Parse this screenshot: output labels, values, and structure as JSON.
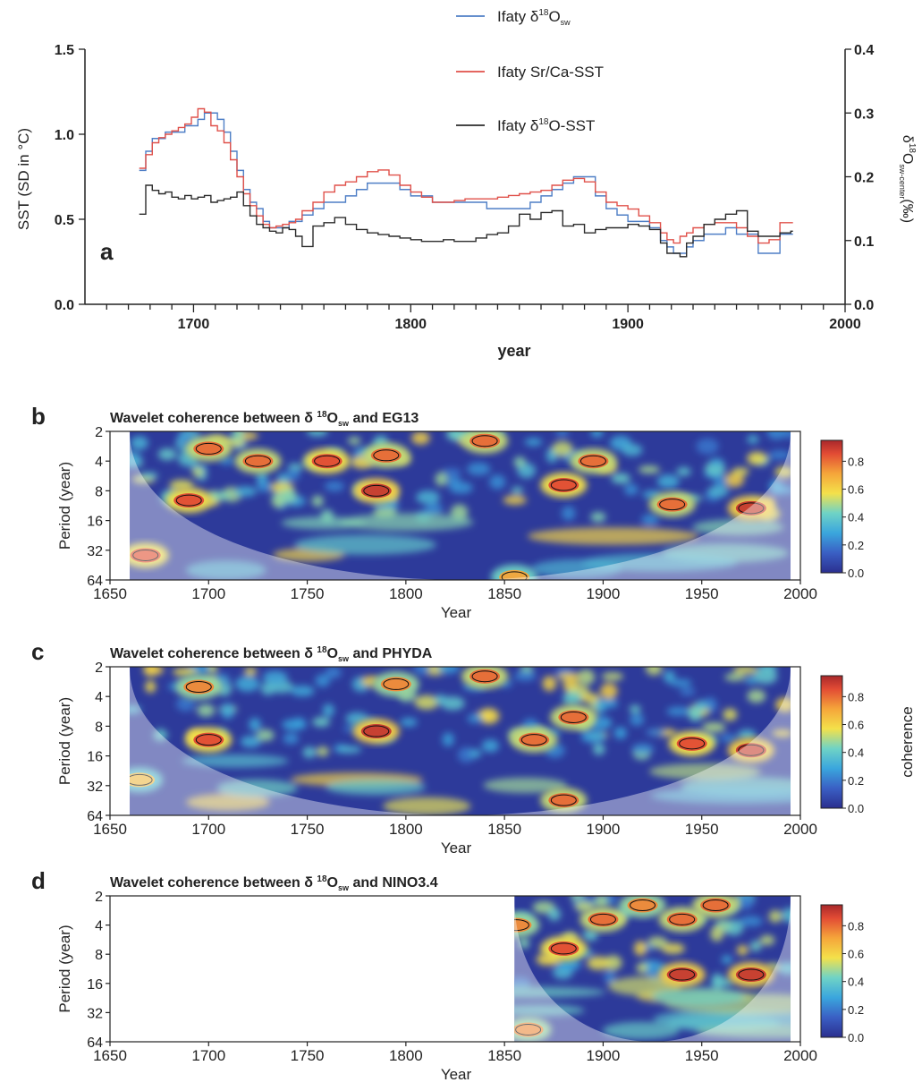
{
  "chart_data": [
    {
      "panel": "a",
      "type": "line",
      "title": "",
      "xlabel": "year",
      "ylabel": "SST (SD in °C)",
      "y2label": {
        "base": "δ",
        "sup": "18",
        "mid": "O",
        "sub": "sw-center",
        "unit": "(‰)"
      },
      "xlim": [
        1650,
        2000
      ],
      "ylim": [
        0,
        1.5
      ],
      "y2lim": [
        0,
        0.4
      ],
      "x_ticks": [
        1700,
        1800,
        1900,
        2000
      ],
      "y_ticks": [
        "0.0",
        "0.5",
        "1.0",
        "1.5"
      ],
      "y2_ticks": [
        "0.0",
        "0.1",
        "0.2",
        "0.3",
        "0.4"
      ],
      "legend_position": "top-center",
      "legend": [
        {
          "base": "Ifaty δ",
          "sup": "18",
          "mid": "O",
          "sub": "sw",
          "color": "#4f7fc6"
        },
        {
          "base": "Ifaty Sr/Ca-SST",
          "sup": "",
          "mid": "",
          "sub": "",
          "color": "#e0514a"
        },
        {
          "base": "Ifaty δ",
          "sup": "18",
          "mid": "O-SST",
          "sub": "",
          "color": "#2b2b2b"
        }
      ],
      "series": [
        {
          "name": "Ifaty δ18Osw",
          "color": "#4f7fc6",
          "axis": "right",
          "x": [
            1675,
            1678,
            1681,
            1684,
            1687,
            1690,
            1693,
            1696,
            1699,
            1702,
            1705,
            1708,
            1711,
            1714,
            1717,
            1720,
            1723,
            1726,
            1729,
            1732,
            1735,
            1738,
            1741,
            1744,
            1747,
            1750,
            1755,
            1760,
            1765,
            1770,
            1775,
            1780,
            1785,
            1790,
            1795,
            1800,
            1805,
            1810,
            1815,
            1820,
            1825,
            1830,
            1835,
            1840,
            1845,
            1850,
            1855,
            1860,
            1865,
            1870,
            1875,
            1880,
            1885,
            1890,
            1895,
            1900,
            1905,
            1910,
            1915,
            1918,
            1921,
            1924,
            1927,
            1930,
            1935,
            1940,
            1945,
            1950,
            1955,
            1960,
            1965,
            1970,
            1975
          ],
          "y": [
            0.21,
            0.24,
            0.26,
            0.26,
            0.27,
            0.27,
            0.27,
            0.28,
            0.28,
            0.29,
            0.3,
            0.3,
            0.29,
            0.27,
            0.24,
            0.21,
            0.18,
            0.16,
            0.15,
            0.13,
            0.12,
            0.12,
            0.12,
            0.13,
            0.13,
            0.14,
            0.15,
            0.16,
            0.16,
            0.17,
            0.18,
            0.19,
            0.19,
            0.19,
            0.18,
            0.17,
            0.17,
            0.16,
            0.16,
            0.16,
            0.16,
            0.16,
            0.15,
            0.15,
            0.15,
            0.15,
            0.16,
            0.17,
            0.18,
            0.19,
            0.2,
            0.2,
            0.17,
            0.15,
            0.14,
            0.13,
            0.13,
            0.12,
            0.1,
            0.09,
            0.08,
            0.08,
            0.09,
            0.1,
            0.11,
            0.11,
            0.12,
            0.11,
            0.11,
            0.08,
            0.08,
            0.11,
            0.11
          ]
        },
        {
          "name": "Ifaty Sr/Ca-SST",
          "color": "#e0514a",
          "axis": "left",
          "x": [
            1675,
            1678,
            1681,
            1684,
            1687,
            1690,
            1693,
            1696,
            1699,
            1702,
            1705,
            1708,
            1711,
            1714,
            1717,
            1720,
            1723,
            1726,
            1729,
            1732,
            1735,
            1738,
            1741,
            1744,
            1747,
            1750,
            1755,
            1760,
            1765,
            1770,
            1775,
            1780,
            1785,
            1790,
            1795,
            1800,
            1805,
            1810,
            1815,
            1820,
            1825,
            1830,
            1835,
            1840,
            1845,
            1850,
            1855,
            1860,
            1865,
            1870,
            1875,
            1880,
            1885,
            1890,
            1895,
            1900,
            1905,
            1910,
            1915,
            1918,
            1921,
            1924,
            1927,
            1930,
            1935,
            1940,
            1945,
            1950,
            1955,
            1960,
            1965,
            1970,
            1975
          ],
          "y": [
            0.8,
            0.88,
            0.95,
            0.98,
            1.0,
            1.02,
            1.04,
            1.06,
            1.1,
            1.15,
            1.13,
            1.05,
            1.02,
            0.95,
            0.85,
            0.75,
            0.65,
            0.58,
            0.52,
            0.47,
            0.45,
            0.46,
            0.47,
            0.48,
            0.5,
            0.55,
            0.6,
            0.66,
            0.7,
            0.72,
            0.75,
            0.78,
            0.79,
            0.76,
            0.7,
            0.66,
            0.63,
            0.6,
            0.6,
            0.61,
            0.62,
            0.62,
            0.62,
            0.63,
            0.64,
            0.65,
            0.66,
            0.67,
            0.7,
            0.73,
            0.74,
            0.72,
            0.66,
            0.6,
            0.58,
            0.56,
            0.52,
            0.48,
            0.42,
            0.38,
            0.36,
            0.4,
            0.42,
            0.45,
            0.47,
            0.48,
            0.48,
            0.45,
            0.4,
            0.36,
            0.38,
            0.48,
            0.48
          ]
        },
        {
          "name": "Ifaty δ18O-SST",
          "color": "#2b2b2b",
          "axis": "left",
          "x": [
            1675,
            1678,
            1681,
            1684,
            1687,
            1690,
            1693,
            1696,
            1699,
            1702,
            1705,
            1708,
            1711,
            1714,
            1717,
            1720,
            1723,
            1726,
            1729,
            1732,
            1735,
            1738,
            1741,
            1744,
            1747,
            1750,
            1755,
            1760,
            1765,
            1770,
            1775,
            1780,
            1785,
            1790,
            1795,
            1800,
            1805,
            1810,
            1815,
            1820,
            1825,
            1830,
            1835,
            1840,
            1845,
            1850,
            1855,
            1860,
            1865,
            1870,
            1875,
            1880,
            1885,
            1890,
            1895,
            1900,
            1905,
            1910,
            1915,
            1918,
            1921,
            1924,
            1927,
            1930,
            1935,
            1940,
            1945,
            1950,
            1955,
            1960,
            1965,
            1970,
            1975
          ],
          "y": [
            0.53,
            0.7,
            0.67,
            0.65,
            0.66,
            0.63,
            0.62,
            0.64,
            0.62,
            0.63,
            0.64,
            0.6,
            0.61,
            0.62,
            0.63,
            0.66,
            0.58,
            0.52,
            0.47,
            0.45,
            0.43,
            0.42,
            0.45,
            0.44,
            0.4,
            0.34,
            0.46,
            0.48,
            0.51,
            0.47,
            0.44,
            0.42,
            0.41,
            0.4,
            0.39,
            0.38,
            0.37,
            0.37,
            0.38,
            0.37,
            0.37,
            0.39,
            0.41,
            0.42,
            0.46,
            0.53,
            0.5,
            0.54,
            0.55,
            0.46,
            0.47,
            0.42,
            0.44,
            0.45,
            0.45,
            0.47,
            0.46,
            0.44,
            0.36,
            0.3,
            0.3,
            0.28,
            0.36,
            0.4,
            0.47,
            0.5,
            0.53,
            0.55,
            0.43,
            0.4,
            0.4,
            0.42,
            0.43
          ]
        }
      ]
    },
    {
      "panel": "b",
      "type": "heatmap",
      "title": {
        "pre": "Wavelet coherence between δ ",
        "sup": "18",
        "mid": "O",
        "sub": "sw",
        "post": " and EG13"
      },
      "xlabel": "Year",
      "ylabel": "Period (year)",
      "xlim": [
        1650,
        2000
      ],
      "data_x_range": [
        1660,
        1995
      ],
      "y_ticks": [
        "2",
        "4",
        "8",
        "16",
        "32",
        "64"
      ],
      "x_ticks": [
        "1650",
        "1700",
        "1750",
        "1800",
        "1850",
        "1900",
        "1950",
        "2000"
      ],
      "colorbar_ticks": [
        "0.8",
        "0.6",
        "0.4",
        "0.2",
        "0.0"
      ],
      "colorbar_label": "",
      "hotspots": [
        {
          "year": 1690,
          "period": 10,
          "value": 0.9
        },
        {
          "year": 1700,
          "period": 3,
          "value": 0.85
        },
        {
          "year": 1725,
          "period": 4,
          "value": 0.85
        },
        {
          "year": 1760,
          "period": 4,
          "value": 0.9
        },
        {
          "year": 1785,
          "period": 8,
          "value": 0.95
        },
        {
          "year": 1790,
          "period": 3.5,
          "value": 0.85
        },
        {
          "year": 1840,
          "period": 2.5,
          "value": 0.85
        },
        {
          "year": 1880,
          "period": 7,
          "value": 0.9
        },
        {
          "year": 1895,
          "period": 4,
          "value": 0.85
        },
        {
          "year": 1935,
          "period": 11,
          "value": 0.85
        },
        {
          "year": 1975,
          "period": 12,
          "value": 0.95
        },
        {
          "year": 1668,
          "period": 36,
          "value": 0.9
        },
        {
          "year": 1855,
          "period": 60,
          "value": 0.75
        }
      ]
    },
    {
      "panel": "c",
      "type": "heatmap",
      "title": {
        "pre": "Wavelet coherence between δ ",
        "sup": "18",
        "mid": "O",
        "sub": "sw",
        "post": " and PHYDA"
      },
      "xlabel": "Year",
      "ylabel": "Period (year)",
      "xlim": [
        1650,
        2000
      ],
      "data_x_range": [
        1660,
        1995
      ],
      "y_ticks": [
        "2",
        "4",
        "8",
        "16",
        "32",
        "64"
      ],
      "x_ticks": [
        "1650",
        "1700",
        "1750",
        "1800",
        "1850",
        "1900",
        "1950",
        "2000"
      ],
      "colorbar_ticks": [
        "0.8",
        "0.6",
        "0.4",
        "0.2",
        "0.0"
      ],
      "colorbar_label": "coherence",
      "hotspots": [
        {
          "year": 1700,
          "period": 11,
          "value": 0.9
        },
        {
          "year": 1695,
          "period": 3.2,
          "value": 0.8
        },
        {
          "year": 1785,
          "period": 9,
          "value": 0.95
        },
        {
          "year": 1795,
          "period": 3,
          "value": 0.8
        },
        {
          "year": 1840,
          "period": 2.5,
          "value": 0.85
        },
        {
          "year": 1865,
          "period": 11,
          "value": 0.85
        },
        {
          "year": 1885,
          "period": 6.5,
          "value": 0.85
        },
        {
          "year": 1880,
          "period": 45,
          "value": 0.85
        },
        {
          "year": 1945,
          "period": 12,
          "value": 0.9
        },
        {
          "year": 1975,
          "period": 14,
          "value": 0.95
        },
        {
          "year": 1665,
          "period": 28,
          "value": 0.7
        }
      ]
    },
    {
      "panel": "d",
      "type": "heatmap",
      "title": {
        "pre": "Wavelet coherence between δ ",
        "sup": "18",
        "mid": "O",
        "sub": "sw",
        "post": " and NINO3.4"
      },
      "xlabel": "Year",
      "ylabel": "Period (year)",
      "xlim": [
        1650,
        2000
      ],
      "data_x_range": [
        1855,
        1995
      ],
      "y_ticks": [
        "2",
        "4",
        "8",
        "16",
        "32",
        "64"
      ],
      "x_ticks": [
        "1650",
        "1700",
        "1750",
        "1800",
        "1850",
        "1900",
        "1950",
        "2000"
      ],
      "colorbar_ticks": [
        "0.8",
        "0.6",
        "0.4",
        "0.2",
        "0.0"
      ],
      "colorbar_label": "",
      "hotspots": [
        {
          "year": 1880,
          "period": 7,
          "value": 0.9
        },
        {
          "year": 1900,
          "period": 3.5,
          "value": 0.85
        },
        {
          "year": 1920,
          "period": 2.5,
          "value": 0.8
        },
        {
          "year": 1940,
          "period": 3.5,
          "value": 0.85
        },
        {
          "year": 1957,
          "period": 2.5,
          "value": 0.85
        },
        {
          "year": 1940,
          "period": 13,
          "value": 0.95
        },
        {
          "year": 1975,
          "period": 13,
          "value": 0.95
        },
        {
          "year": 1862,
          "period": 48,
          "value": 0.8
        },
        {
          "year": 1856,
          "period": 4,
          "value": 0.8
        }
      ]
    }
  ]
}
